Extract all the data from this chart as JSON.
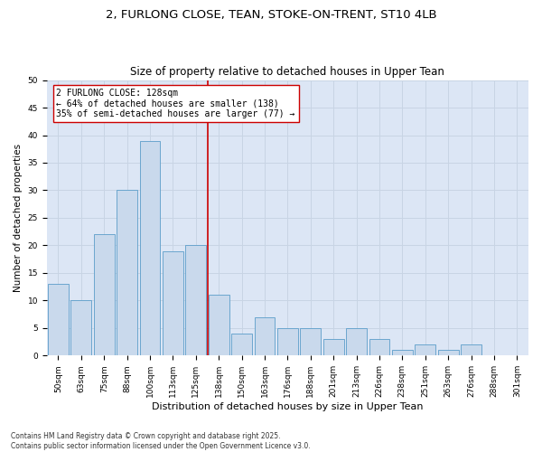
{
  "title": "2, FURLONG CLOSE, TEAN, STOKE-ON-TRENT, ST10 4LB",
  "subtitle": "Size of property relative to detached houses in Upper Tean",
  "xlabel": "Distribution of detached houses by size in Upper Tean",
  "ylabel": "Number of detached properties",
  "categories": [
    "50sqm",
    "63sqm",
    "75sqm",
    "88sqm",
    "100sqm",
    "113sqm",
    "125sqm",
    "138sqm",
    "150sqm",
    "163sqm",
    "176sqm",
    "188sqm",
    "201sqm",
    "213sqm",
    "226sqm",
    "238sqm",
    "251sqm",
    "263sqm",
    "276sqm",
    "288sqm",
    "301sqm"
  ],
  "bar_values": [
    13,
    10,
    22,
    30,
    39,
    19,
    20,
    11,
    4,
    7,
    5,
    5,
    3,
    5,
    3,
    1,
    2,
    1,
    2,
    0,
    0
  ],
  "bar_color": "#c9d9ec",
  "bar_edge_color": "#5b9dc9",
  "vline_x": 6.5,
  "vline_color": "#cc0000",
  "annotation_text": "2 FURLONG CLOSE: 128sqm\n← 64% of detached houses are smaller (138)\n35% of semi-detached houses are larger (77) →",
  "annotation_box_color": "#cc0000",
  "ylim": [
    0,
    50
  ],
  "yticks": [
    0,
    5,
    10,
    15,
    20,
    25,
    30,
    35,
    40,
    45,
    50
  ],
  "grid_color": "#c8d4e4",
  "background_color": "#dce6f5",
  "fig_background_color": "#ffffff",
  "footnote": "Contains HM Land Registry data © Crown copyright and database right 2025.\nContains public sector information licensed under the Open Government Licence v3.0.",
  "title_fontsize": 9.5,
  "subtitle_fontsize": 8.5,
  "annotation_fontsize": 7,
  "tick_fontsize": 6.5,
  "xlabel_fontsize": 8,
  "ylabel_fontsize": 7.5,
  "footnote_fontsize": 5.5
}
